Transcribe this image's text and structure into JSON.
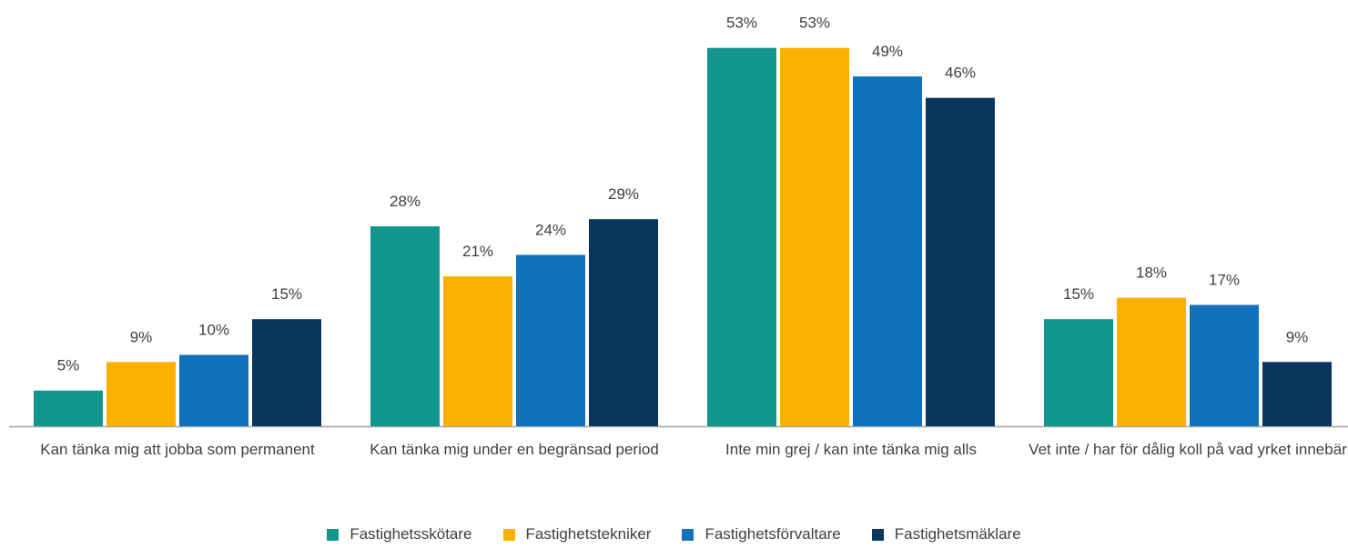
{
  "chart_data": {
    "type": "bar",
    "categories": [
      "Kan tänka mig att jobba som permanent",
      "Kan tänka mig under en begränsad period",
      "Inte min grej / kan inte tänka mig alls",
      "Vet inte / har för dålig koll på vad yrket innebär"
    ],
    "series": [
      {
        "name": "Fastighetsskötare",
        "color": "#12948f",
        "values": [
          5,
          28,
          53,
          15
        ],
        "value_labels": [
          "5%",
          "28%",
          "53%",
          "15%"
        ]
      },
      {
        "name": "Fastighetstekniker",
        "color": "#fbb100",
        "values": [
          9,
          21,
          53,
          18
        ],
        "value_labels": [
          "9%",
          "21%",
          "53%",
          "18%"
        ]
      },
      {
        "name": "Fastighetsförvaltare",
        "color": "#1271bb",
        "values": [
          10,
          24,
          49,
          17
        ],
        "value_labels": [
          "10%",
          "24%",
          "49%",
          "17%"
        ]
      },
      {
        "name": "Fastighetsmäklare",
        "color": "#0a355c",
        "values": [
          15,
          29,
          46,
          9
        ],
        "value_labels": [
          "15%",
          "29%",
          "46%",
          "9%"
        ]
      }
    ],
    "ylim": [
      0,
      55
    ],
    "grid": false
  }
}
